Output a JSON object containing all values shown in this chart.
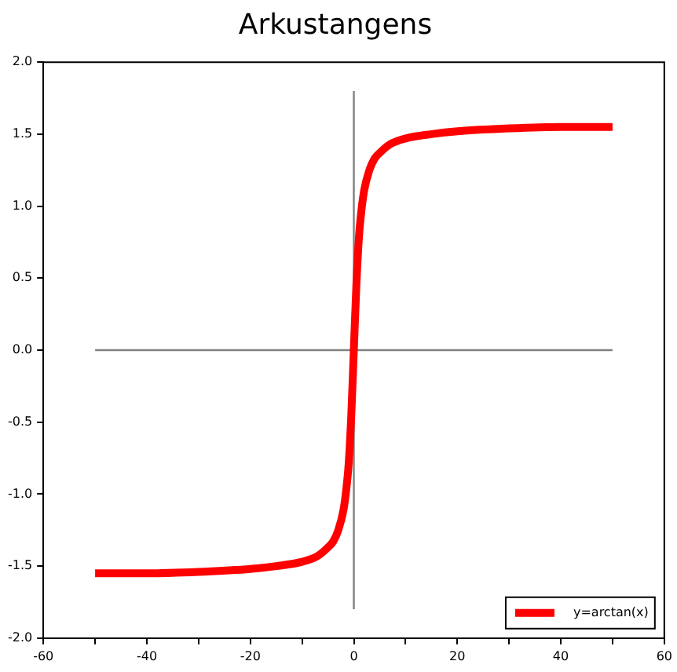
{
  "chart_data": {
    "type": "line",
    "title": "Arkustangens",
    "series": [
      {
        "name": "y=arctan(x)",
        "color": "#ff0000",
        "x": [
          -50,
          -40,
          -30,
          -20,
          -15,
          -10,
          -7,
          -5,
          -4,
          -3,
          -2,
          -1.5,
          -1,
          -0.5,
          0,
          0.5,
          1,
          1.5,
          2,
          3,
          4,
          5,
          7,
          10,
          15,
          20,
          30,
          40,
          50
        ],
        "values": [
          -1.55,
          -1.55,
          -1.54,
          -1.52,
          -1.5,
          -1.47,
          -1.43,
          -1.37,
          -1.33,
          -1.25,
          -1.11,
          -0.98,
          -0.79,
          -0.46,
          0,
          0.46,
          0.79,
          0.98,
          1.11,
          1.25,
          1.33,
          1.37,
          1.43,
          1.47,
          1.5,
          1.52,
          1.54,
          1.55,
          1.55
        ]
      },
      {
        "color": "#808080",
        "x": [
          -50,
          50
        ],
        "values": [
          0,
          0
        ]
      },
      {
        "color": "#808080",
        "x": [
          0,
          0
        ],
        "values": [
          -1.8,
          1.8
        ]
      }
    ],
    "xlim": [
      -60,
      60
    ],
    "xticks": [
      -60,
      {
        "value": -50,
        "label": null
      },
      -40,
      {
        "value": -30,
        "label": null
      },
      -20,
      {
        "value": -10,
        "label": null
      },
      0,
      {
        "value": 10,
        "label": null
      },
      20,
      {
        "value": 30,
        "label": null
      },
      40,
      {
        "value": 50,
        "label": null
      },
      60
    ],
    "ylim": [
      -2,
      2
    ],
    "yticks": [
      {
        "value": -2,
        "label": "-2.0"
      },
      {
        "value": -1.5,
        "label": "-1.5"
      },
      {
        "value": -1,
        "label": "-1.0"
      },
      {
        "value": -0.5,
        "label": "-0.5"
      },
      {
        "value": 0,
        "label": "0.0"
      },
      {
        "value": 0.5,
        "label": "0.5"
      },
      {
        "value": 1,
        "label": "1.0"
      },
      {
        "value": 1.5,
        "label": "1.5"
      },
      {
        "value": 2,
        "label": "2.0"
      }
    ],
    "grid": false,
    "legend": "bottom right",
    "marker": "none",
    "line_style": "solid"
  }
}
